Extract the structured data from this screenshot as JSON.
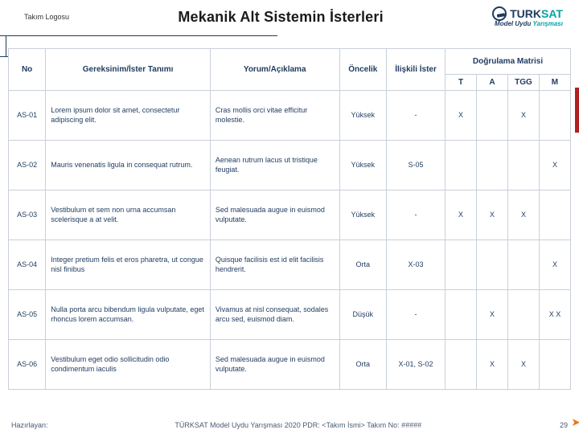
{
  "header": {
    "team_logo_label": "Takım Logosu",
    "title": "Mekanik Alt Sistemin İsterleri",
    "brand": {
      "turk": "TURK",
      "sat": "SAT",
      "sub_prefix": "Model Uydu ",
      "sub_emph": "Yarışması"
    }
  },
  "columns": {
    "no": "No",
    "req": "Gereksinim/İster Tanımı",
    "comment": "Yorum/Açıklama",
    "priority": "Öncelik",
    "related": "İlişkili İster",
    "verification": "Doğrulama Matrisi",
    "v_T": "T",
    "v_A": "A",
    "v_TGG": "TGG",
    "v_M": "M"
  },
  "rows": [
    {
      "no": "AS-01",
      "req": "Lorem ipsum dolor sit amet, consectetur adipiscing elit.",
      "comment": "Cras mollis orci vitae efficitur molestie.",
      "priority": "Yüksek",
      "related": "-",
      "T": "X",
      "A": "",
      "TGG": "X",
      "M": ""
    },
    {
      "no": "AS-02",
      "req": "Mauris venenatis ligula in consequat rutrum.",
      "comment": "Aenean rutrum lacus ut tristique feugiat.",
      "priority": "Yüksek",
      "related": "S-05",
      "T": "",
      "A": "",
      "TGG": "",
      "M": "X"
    },
    {
      "no": "AS-03",
      "req": "Vestibulum et sem non urna accumsan scelerisque a at velit.",
      "comment": "Sed malesuada augue in euismod vulputate.",
      "priority": "Yüksek",
      "related": "-",
      "T": "X",
      "A": "X",
      "TGG": "X",
      "M": ""
    },
    {
      "no": "AS-04",
      "req": "Integer pretium felis et eros pharetra, ut congue nisl finibus",
      "comment": "Quisque facilisis est id elit facilisis hendrerit.",
      "priority": "Orta",
      "related": "X-03",
      "T": "",
      "A": "",
      "TGG": "",
      "M": "X"
    },
    {
      "no": "AS-05",
      "req": "Nulla porta arcu bibendum ligula vulputate, eget rhoncus lorem accumsan.",
      "comment": "Vivamus at nisl consequat, sodales arcu sed, euismod diam.",
      "priority": "Düşük",
      "related": "-",
      "T": "",
      "A": "X",
      "TGG": "",
      "M": "X   X"
    },
    {
      "no": "AS-06",
      "req": "Vestibulum eget odio sollicitudin odio condimentum iaculis",
      "comment": "Sed malesuada augue in euismod vulputate.",
      "priority": "Orta",
      "related": "X-01, S-02",
      "T": "",
      "A": "X",
      "TGG": "X",
      "M": ""
    }
  ],
  "footer": {
    "prepared_by_label": "Hazırlayan:",
    "mid": "TÜRKSAT Model Uydu Yarışması 2020 PDR: <Takım İsmi> Takım No: #####",
    "page": "29"
  },
  "styles": {
    "text_color": "#1f3a5f",
    "accent_color": "#00a3a3",
    "border_color": "#c9d0da",
    "arrow_color": "#e07b1f"
  }
}
